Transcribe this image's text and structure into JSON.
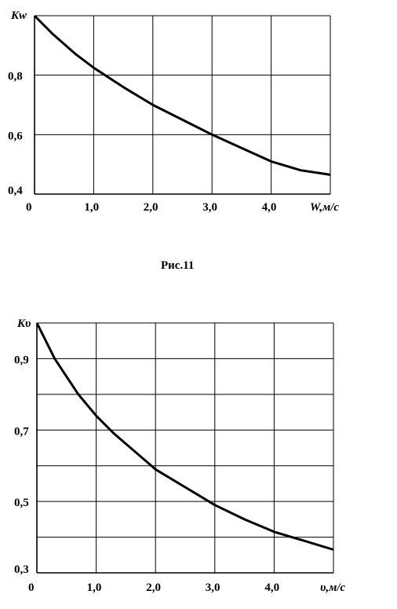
{
  "caption": "Рис.11",
  "chart_data": [
    {
      "type": "line",
      "ylabel": "Kw",
      "xlabel_var": "W",
      "xlabel_unit": ",м/с",
      "xlim": [
        0,
        5
      ],
      "ylim": [
        0.4,
        1.0
      ],
      "xticks": [
        "0",
        "1,0",
        "2,0",
        "3,0",
        "4,0"
      ],
      "yticks": [
        "0,4",
        "0,6",
        "0,8"
      ],
      "grid": true,
      "series": [
        {
          "x": [
            0,
            0.3,
            0.7,
            1.0,
            1.5,
            2.0,
            2.5,
            3.0,
            3.5,
            4.0,
            4.5,
            5.0
          ],
          "y": [
            1.0,
            0.94,
            0.87,
            0.825,
            0.76,
            0.7,
            0.65,
            0.6,
            0.555,
            0.51,
            0.48,
            0.465
          ]
        }
      ]
    },
    {
      "type": "line",
      "ylabel": "Kυ",
      "xlabel_var": "υ",
      "xlabel_unit": ",м/с",
      "xlim": [
        0,
        5
      ],
      "ylim": [
        0.3,
        1.0
      ],
      "xticks": [
        "0",
        "1,0",
        "2,0",
        "3,0",
        "4,0"
      ],
      "yticks": [
        "0,3",
        "0,5",
        "0,7",
        "0,9"
      ],
      "grid": true,
      "series": [
        {
          "x": [
            0,
            0.3,
            0.7,
            1.0,
            1.3,
            2.0,
            2.5,
            3.0,
            3.5,
            4.0,
            4.5,
            5.0
          ],
          "y": [
            1.0,
            0.9,
            0.8,
            0.74,
            0.69,
            0.59,
            0.54,
            0.49,
            0.45,
            0.415,
            0.39,
            0.365
          ]
        }
      ]
    }
  ]
}
